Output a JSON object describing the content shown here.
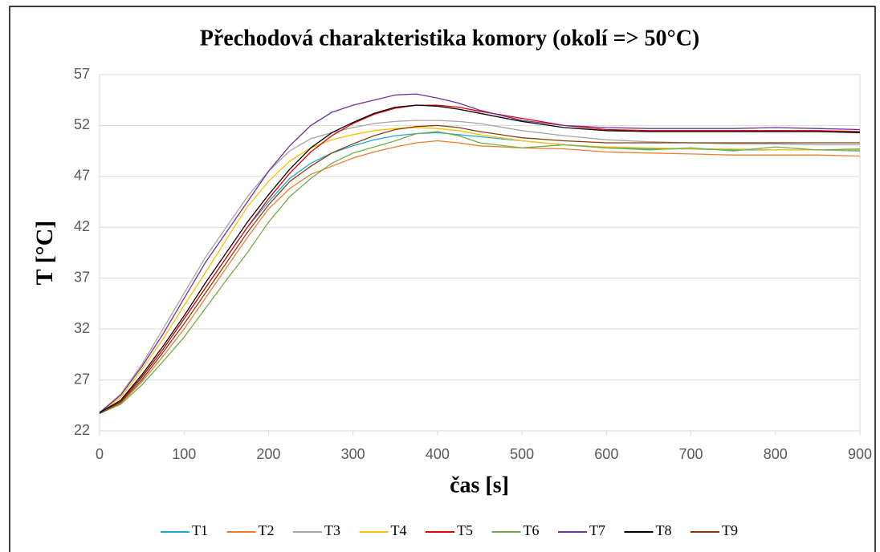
{
  "chart_data": {
    "type": "line",
    "title": "Přechodová charakteristika komory (okolí => 50°C)",
    "x_label": "čas [s]",
    "y_label": "T [°C]",
    "x": [
      0,
      25,
      50,
      75,
      100,
      125,
      150,
      175,
      200,
      225,
      250,
      275,
      300,
      325,
      350,
      375,
      400,
      425,
      450,
      500,
      550,
      600,
      650,
      700,
      750,
      800,
      850,
      900
    ],
    "xlim": [
      0,
      900
    ],
    "xticks": [
      0,
      100,
      200,
      300,
      400,
      500,
      600,
      700,
      800,
      900
    ],
    "ylim": [
      22,
      57
    ],
    "yticks": [
      22,
      27,
      32,
      37,
      42,
      47,
      52,
      57
    ],
    "grid": true,
    "legend": "bottom",
    "series": [
      {
        "name": "T1",
        "color": "#1fa8d8",
        "values": [
          23.7,
          24.9,
          27.2,
          30,
          33,
          36,
          39,
          42,
          44.5,
          46.8,
          48.3,
          49.3,
          50,
          50.6,
          51,
          51.2,
          51.3,
          51.1,
          50.9,
          50.5,
          50.1,
          49.8,
          49.7,
          49.7,
          49.6,
          49.6,
          49.6,
          49.5
        ]
      },
      {
        "name": "T2",
        "color": "#ed7d31",
        "values": [
          23.7,
          24.7,
          26.8,
          29.3,
          32,
          35,
          38,
          41,
          43.8,
          45.8,
          47.2,
          48,
          48.8,
          49.4,
          49.9,
          50.3,
          50.5,
          50.3,
          50,
          49.8,
          49.7,
          49.4,
          49.3,
          49.2,
          49.1,
          49.1,
          49.1,
          49
        ]
      },
      {
        "name": "T3",
        "color": "#a5a5a5",
        "values": [
          23.8,
          25.6,
          28.5,
          32,
          35.5,
          39,
          42,
          45,
          47.5,
          49.5,
          50.7,
          51.3,
          51.8,
          52.2,
          52.4,
          52.5,
          52.5,
          52.4,
          52.2,
          51.5,
          51,
          50.6,
          50.4,
          50.3,
          50.2,
          50.2,
          50.1,
          50.1
        ]
      },
      {
        "name": "T4",
        "color": "#ffc000",
        "values": [
          23.8,
          25.3,
          28,
          31,
          34.3,
          37.5,
          40.8,
          44,
          46.5,
          48.5,
          49.8,
          50.6,
          51.1,
          51.5,
          51.7,
          51.8,
          51.7,
          51.5,
          51.1,
          50.5,
          50.1,
          49.9,
          49.8,
          49.7,
          49.7,
          49.6,
          49.6,
          49.6
        ]
      },
      {
        "name": "T5",
        "color": "#e00000",
        "values": [
          23.8,
          24.9,
          27.3,
          30,
          33,
          36,
          39,
          42,
          44.8,
          47.3,
          49.4,
          51,
          52.2,
          53.1,
          53.7,
          54,
          54,
          53.8,
          53.4,
          52.7,
          52,
          51.6,
          51.5,
          51.5,
          51.5,
          51.5,
          51.5,
          51.4
        ]
      },
      {
        "name": "T6",
        "color": "#70ad47",
        "values": [
          23.7,
          24.6,
          26.5,
          28.8,
          31.2,
          34,
          36.8,
          39.5,
          42.5,
          45,
          46.8,
          48.3,
          49.3,
          49.9,
          50.5,
          51.2,
          51.4,
          51,
          50.3,
          49.8,
          50.1,
          49.8,
          49.6,
          49.8,
          49.5,
          49.9,
          49.6,
          49.7
        ]
      },
      {
        "name": "T7",
        "color": "#7030a0",
        "values": [
          23.8,
          25.5,
          28.3,
          31.5,
          35,
          38.5,
          41.5,
          44.5,
          47.5,
          50,
          52,
          53.3,
          54,
          54.5,
          55,
          55.1,
          54.7,
          54.2,
          53.5,
          52.5,
          52,
          51.8,
          51.7,
          51.7,
          51.7,
          51.8,
          51.7,
          51.6
        ]
      },
      {
        "name": "T8",
        "color": "#000000",
        "values": [
          23.8,
          25,
          27.5,
          30.3,
          33.3,
          36.5,
          39.5,
          42.5,
          45.2,
          47.7,
          49.8,
          51.3,
          52.3,
          53.2,
          53.8,
          54,
          53.9,
          53.6,
          53.2,
          52.4,
          51.8,
          51.5,
          51.4,
          51.4,
          51.4,
          51.4,
          51.4,
          51.3
        ]
      },
      {
        "name": "T9",
        "color": "#843c0c",
        "values": [
          23.7,
          24.8,
          27,
          29.7,
          32.5,
          35.5,
          38.5,
          41.5,
          44.2,
          46.5,
          48,
          49.3,
          50.2,
          51,
          51.6,
          51.9,
          52,
          51.8,
          51.4,
          50.8,
          50.5,
          50.3,
          50.3,
          50.3,
          50.3,
          50.3,
          50.3,
          50.3
        ]
      }
    ]
  }
}
